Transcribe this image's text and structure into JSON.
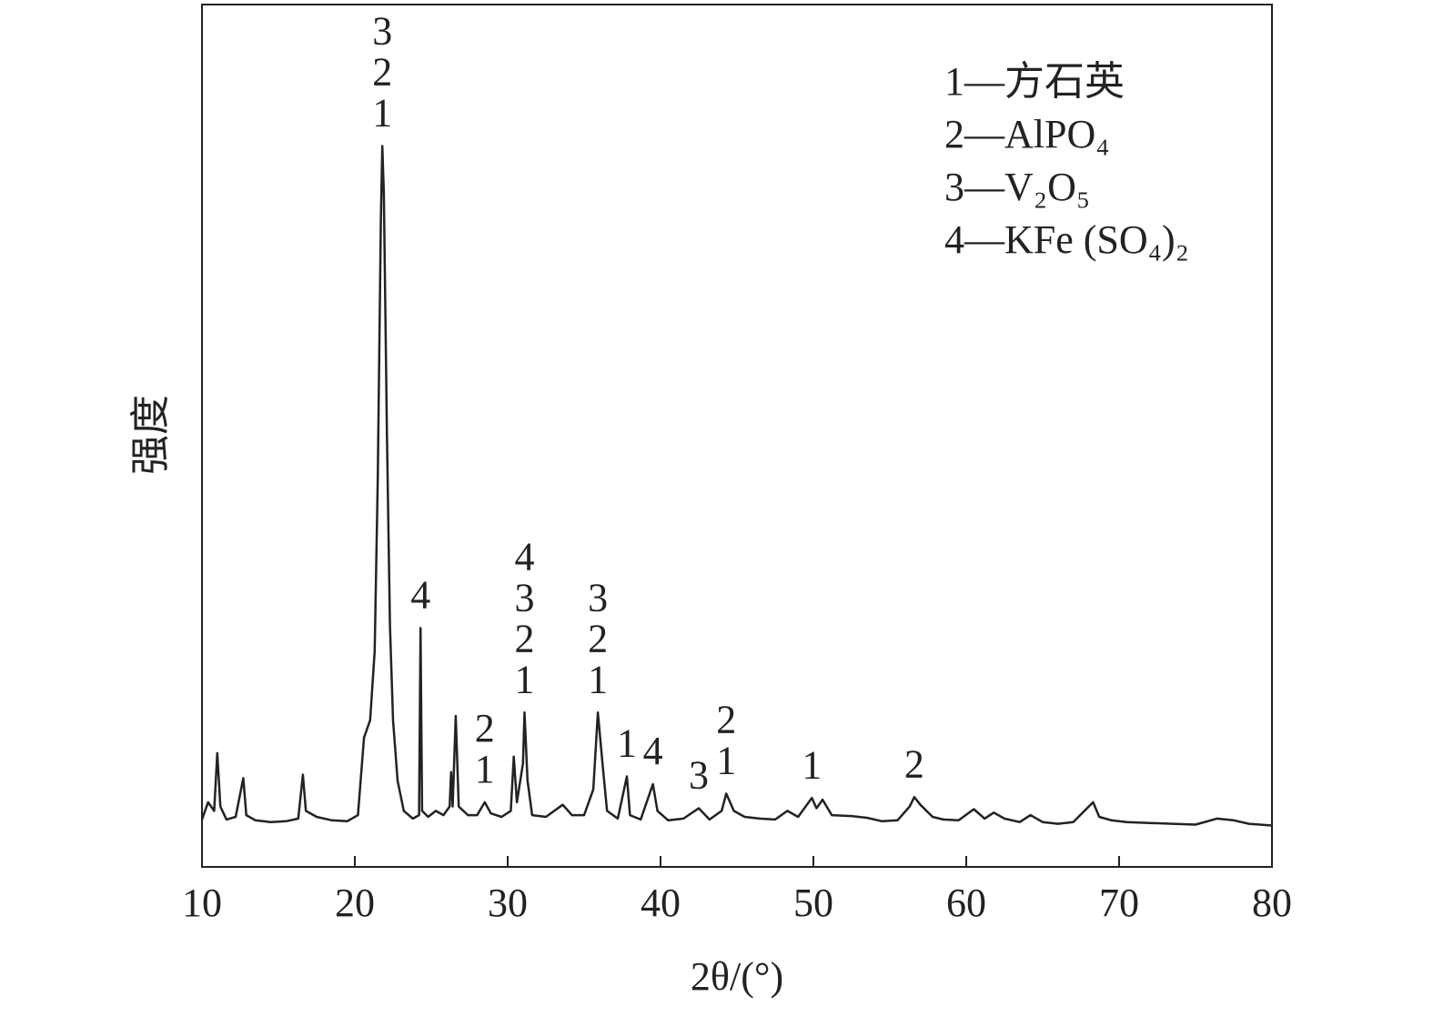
{
  "chart_data": {
    "type": "line",
    "xlabel": "2θ/(°)",
    "ylabel": "强度",
    "xlim": [
      10,
      80
    ],
    "xticks": [
      10,
      20,
      30,
      40,
      50,
      60,
      70,
      80
    ],
    "ylim": [
      0,
      100
    ],
    "series": [
      {
        "color": "#222222",
        "x": [
          10.0,
          10.4,
          10.8,
          11.0,
          11.2,
          11.6,
          12.2,
          12.7,
          12.9,
          13.5,
          14.5,
          15.5,
          16.3,
          16.6,
          16.8,
          17.5,
          18.5,
          19.5,
          20.2,
          20.6,
          21.0,
          21.3,
          21.5,
          21.7,
          21.8,
          21.9,
          22.1,
          22.3,
          22.5,
          22.8,
          23.2,
          23.8,
          24.2,
          24.3,
          24.4,
          24.8,
          25.3,
          25.8,
          26.2,
          26.3,
          26.4,
          26.6,
          26.8,
          27.4,
          28.0,
          28.5,
          28.9,
          29.6,
          30.2,
          30.4,
          30.6,
          31.0,
          31.1,
          31.3,
          31.6,
          32.5,
          33.6,
          34.2,
          35.0,
          35.6,
          35.9,
          36.2,
          36.5,
          37.2,
          37.8,
          38.0,
          38.7,
          39.5,
          39.8,
          40.5,
          41.5,
          42.5,
          43.2,
          44.0,
          44.3,
          44.8,
          45.5,
          46.5,
          47.5,
          48.3,
          49.0,
          49.9,
          50.2,
          50.6,
          51.2,
          52.5,
          53.5,
          54.5,
          55.5,
          56.3,
          56.6,
          57.0,
          57.8,
          58.5,
          59.5,
          60.5,
          61.2,
          61.8,
          62.5,
          63.5,
          64.2,
          65.0,
          66.0,
          67.0,
          68.3,
          68.7,
          69.5,
          70.5,
          72.0,
          73.5,
          75.0,
          76.4,
          77.5,
          78.5,
          80.0
        ],
        "values": [
          5.5,
          7.5,
          6.5,
          13.2,
          7,
          5.5,
          5.8,
          10.3,
          6,
          5.4,
          5.2,
          5.3,
          5.6,
          10.7,
          6.5,
          5.8,
          5.4,
          5.3,
          6,
          15,
          17,
          25,
          45,
          75,
          83.6,
          78,
          50,
          28,
          17,
          10,
          6.5,
          5.6,
          6,
          27.7,
          6.5,
          5.8,
          6.5,
          6,
          7,
          11,
          7,
          17.5,
          7,
          6,
          6,
          7.5,
          6.2,
          5.8,
          6.5,
          12.8,
          7.5,
          12,
          17.9,
          10,
          6,
          5.8,
          7.2,
          6,
          6,
          9,
          17.9,
          12,
          6.5,
          5.6,
          10.5,
          6,
          5.5,
          9.6,
          6.5,
          5.4,
          5.6,
          6.8,
          5.5,
          6.5,
          8.5,
          6.5,
          5.8,
          5.6,
          5.5,
          6.5,
          5.8,
          8,
          6.8,
          7.8,
          6,
          5.9,
          5.7,
          5.3,
          5.4,
          7,
          8.1,
          7.2,
          5.8,
          5.5,
          5.4,
          6.7,
          5.6,
          6.3,
          5.6,
          5.2,
          6,
          5.2,
          5,
          5.2,
          7.5,
          5.8,
          5.4,
          5.2,
          5.1,
          5.0,
          4.9,
          5.6,
          5.4,
          5.0,
          4.8
        ]
      }
    ],
    "annotations": [
      {
        "x": 21.8,
        "labels": [
          "3",
          "2",
          "1"
        ]
      },
      {
        "x": 24.3,
        "labels": [
          "4"
        ]
      },
      {
        "x": 28.5,
        "labels": [
          "2",
          "1"
        ]
      },
      {
        "x": 31.1,
        "labels": [
          "4",
          "3",
          "2",
          "1"
        ]
      },
      {
        "x": 35.9,
        "labels": [
          "3",
          "2",
          "1"
        ]
      },
      {
        "x": 37.8,
        "labels": [
          "1"
        ]
      },
      {
        "x": 39.5,
        "labels": [
          "4"
        ]
      },
      {
        "x": 42.5,
        "labels": [
          "3"
        ]
      },
      {
        "x": 44.3,
        "labels": [
          "2",
          "1"
        ]
      },
      {
        "x": 49.9,
        "labels": [
          "1"
        ]
      },
      {
        "x": 56.6,
        "labels": [
          "2"
        ]
      }
    ],
    "legend": [
      "1—方石英",
      "2—AlPO₄",
      "3—V₂O₅",
      "4—KFe (SO₄)₂"
    ]
  }
}
